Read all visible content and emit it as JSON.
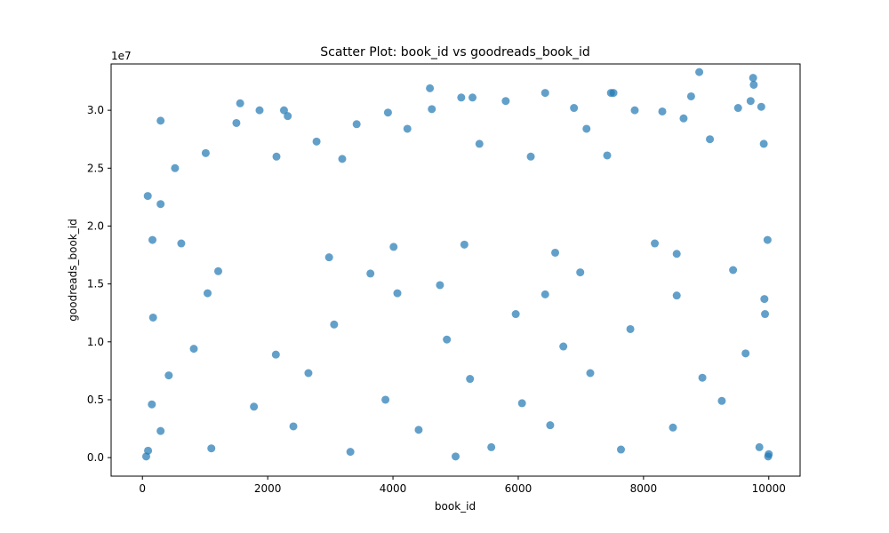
{
  "chart_data": {
    "type": "scatter",
    "title": "Scatter Plot: book_id vs goodreads_book_id",
    "xlabel": "book_id",
    "ylabel": "goodreads_book_id",
    "offset_text": "1e7",
    "xlim": [
      -500,
      10500
    ],
    "ylim": [
      -1600000,
      34000000
    ],
    "x_ticks": [
      0,
      2000,
      4000,
      6000,
      8000,
      10000
    ],
    "x_tick_labels": [
      "0",
      "2000",
      "4000",
      "6000",
      "8000",
      "10000"
    ],
    "y_ticks": [
      0,
      5000000,
      10000000,
      15000000,
      20000000,
      25000000,
      30000000
    ],
    "y_tick_labels": [
      "0.0",
      "0.5",
      "1.0",
      "1.5",
      "2.0",
      "2.5",
      "3.0"
    ],
    "grid": false,
    "marker_color": "#1f77b4",
    "marker_alpha": 0.7,
    "series": [
      {
        "points": [
          [
            85,
            22600000
          ],
          [
            290,
            29100000
          ],
          [
            1560,
            30600000
          ],
          [
            2260,
            30000000
          ],
          [
            2320,
            29500000
          ],
          [
            4590,
            31900000
          ],
          [
            4620,
            30100000
          ],
          [
            5090,
            31100000
          ],
          [
            5270,
            31100000
          ],
          [
            6430,
            31500000
          ],
          [
            6890,
            30200000
          ],
          [
            7480,
            31500000
          ],
          [
            7520,
            31500000
          ],
          [
            7860,
            30000000
          ],
          [
            8890,
            33300000
          ],
          [
            9510,
            30200000
          ],
          [
            9750,
            32800000
          ],
          [
            9760,
            32200000
          ],
          [
            9710,
            30800000
          ],
          [
            9880,
            30300000
          ],
          [
            1870,
            30000000
          ],
          [
            3420,
            28800000
          ],
          [
            3920,
            29800000
          ],
          [
            4230,
            28400000
          ],
          [
            5800,
            30800000
          ],
          [
            8300,
            29900000
          ],
          [
            8640,
            29300000
          ],
          [
            8760,
            31200000
          ],
          [
            7090,
            28400000
          ],
          [
            1500,
            28900000
          ],
          [
            2780,
            27300000
          ],
          [
            520,
            25000000
          ],
          [
            1010,
            26300000
          ],
          [
            2140,
            26000000
          ],
          [
            3190,
            25800000
          ],
          [
            5380,
            27100000
          ],
          [
            6200,
            26000000
          ],
          [
            7420,
            26100000
          ],
          [
            9060,
            27500000
          ],
          [
            9920,
            27100000
          ],
          [
            290,
            21900000
          ],
          [
            160,
            18800000
          ],
          [
            4010,
            18200000
          ],
          [
            6590,
            17700000
          ],
          [
            8180,
            18500000
          ],
          [
            9980,
            18800000
          ],
          [
            620,
            18500000
          ],
          [
            2980,
            17300000
          ],
          [
            5140,
            18400000
          ],
          [
            8530,
            17600000
          ],
          [
            1210,
            16100000
          ],
          [
            3640,
            15900000
          ],
          [
            6990,
            16000000
          ],
          [
            9430,
            16200000
          ],
          [
            4750,
            14900000
          ],
          [
            1040,
            14200000
          ],
          [
            4070,
            14200000
          ],
          [
            6430,
            14100000
          ],
          [
            8530,
            14000000
          ],
          [
            9930,
            13700000
          ],
          [
            170,
            12100000
          ],
          [
            3060,
            11500000
          ],
          [
            5960,
            12400000
          ],
          [
            7790,
            11100000
          ],
          [
            9940,
            12400000
          ],
          [
            820,
            9400000
          ],
          [
            2130,
            8900000
          ],
          [
            4860,
            10200000
          ],
          [
            6720,
            9600000
          ],
          [
            9630,
            9000000
          ],
          [
            420,
            7100000
          ],
          [
            2650,
            7300000
          ],
          [
            5230,
            6800000
          ],
          [
            7150,
            7300000
          ],
          [
            8940,
            6900000
          ],
          [
            150,
            4600000
          ],
          [
            1780,
            4400000
          ],
          [
            3880,
            5000000
          ],
          [
            6060,
            4700000
          ],
          [
            9250,
            4900000
          ],
          [
            290,
            2300000
          ],
          [
            2410,
            2700000
          ],
          [
            4410,
            2400000
          ],
          [
            6510,
            2800000
          ],
          [
            8470,
            2600000
          ],
          [
            90,
            600000
          ],
          [
            1100,
            800000
          ],
          [
            3320,
            500000
          ],
          [
            5570,
            900000
          ],
          [
            7640,
            700000
          ],
          [
            9850,
            900000
          ],
          [
            10000,
            300000
          ],
          [
            60,
            100000
          ],
          [
            5000,
            100000
          ],
          [
            9990,
            100000
          ]
        ]
      }
    ]
  }
}
